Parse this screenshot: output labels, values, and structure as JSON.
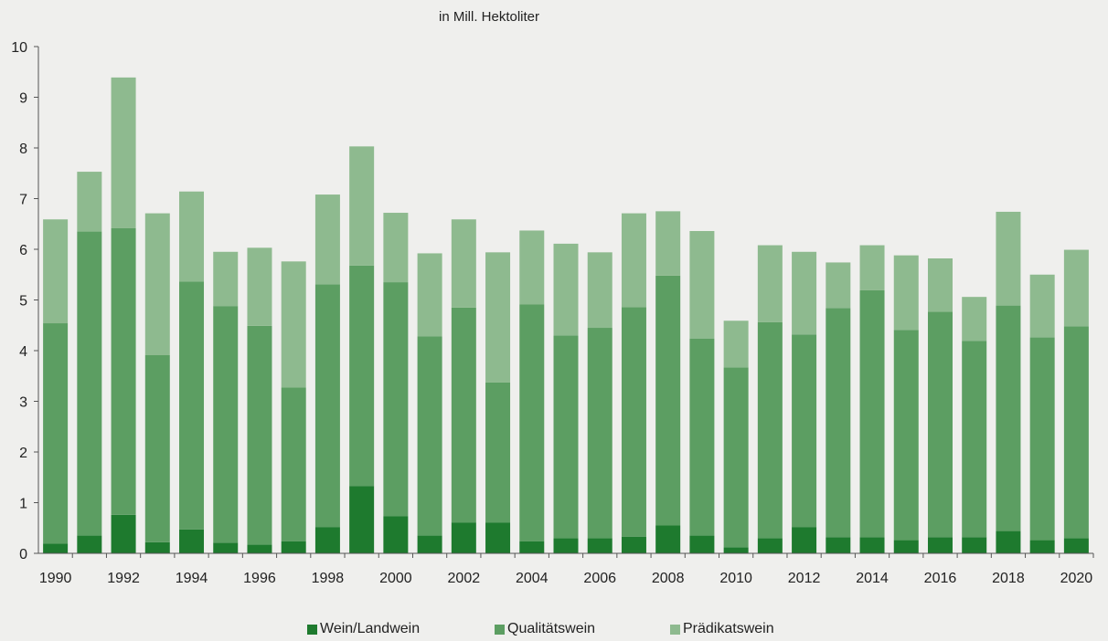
{
  "chart_data": {
    "type": "bar",
    "stacked": true,
    "unit_label": "in Mill. Hektoliter",
    "x": [
      1990,
      1991,
      1992,
      1993,
      1994,
      1995,
      1996,
      1997,
      1998,
      1999,
      2000,
      2001,
      2002,
      2003,
      2004,
      2005,
      2006,
      2007,
      2008,
      2009,
      2010,
      2011,
      2012,
      2013,
      2014,
      2015,
      2016,
      2017,
      2018,
      2019,
      2020
    ],
    "x_tick_labels": [
      "1990",
      "1992",
      "1994",
      "1996",
      "1998",
      "2000",
      "2002",
      "2004",
      "2006",
      "2008",
      "2010",
      "2012",
      "2014",
      "2016",
      "2018",
      "2020"
    ],
    "y_tick_labels": [
      "0",
      "1",
      "2",
      "3",
      "4",
      "5",
      "6",
      "7",
      "8",
      "9",
      "10"
    ],
    "ylim": [
      0,
      10
    ],
    "grid": false,
    "legend_position": "bottom",
    "series": [
      {
        "name": "Wein/Landwein",
        "color": "#1e7a2e",
        "values": [
          0.19,
          0.35,
          0.76,
          0.22,
          0.47,
          0.21,
          0.17,
          0.24,
          0.52,
          1.33,
          0.73,
          0.35,
          0.61,
          0.61,
          0.24,
          0.3,
          0.3,
          0.33,
          0.55,
          0.35,
          0.12,
          0.3,
          0.52,
          0.32,
          0.32,
          0.26,
          0.32,
          0.32,
          0.44,
          0.26,
          0.3
        ]
      },
      {
        "name": "Qualitätswein",
        "color": "#5c9e62",
        "values": [
          4.35,
          6.0,
          5.66,
          3.69,
          4.89,
          4.67,
          4.32,
          3.03,
          4.79,
          4.35,
          4.62,
          3.93,
          4.24,
          2.76,
          4.67,
          4.0,
          4.15,
          4.53,
          4.93,
          3.89,
          3.55,
          4.26,
          3.8,
          4.52,
          4.87,
          4.15,
          4.45,
          3.87,
          4.45,
          4.0,
          4.18
        ]
      },
      {
        "name": "Prädikatswein",
        "color": "#8eba8f",
        "values": [
          2.05,
          1.18,
          2.97,
          2.8,
          1.78,
          1.07,
          1.54,
          2.49,
          1.77,
          2.35,
          1.37,
          1.64,
          1.74,
          2.57,
          1.46,
          1.81,
          1.49,
          1.85,
          1.27,
          2.12,
          0.92,
          1.52,
          1.63,
          0.9,
          0.89,
          1.47,
          1.05,
          0.87,
          1.85,
          1.24,
          1.51
        ]
      }
    ]
  }
}
